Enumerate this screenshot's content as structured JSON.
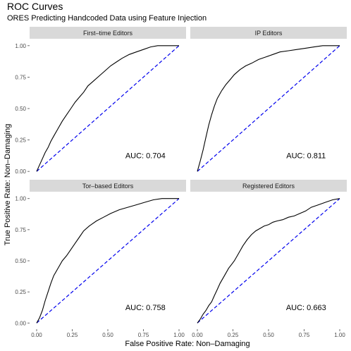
{
  "title": "ROC Curves",
  "subtitle": "ORES Predicting Handcoded Data using Feature Injection",
  "xlabel": "False Positive Rate: Non–Damaging",
  "ylabel": "True Positive Rate: Non–Damaging",
  "colors": {
    "strip": "#d9d9d9",
    "curve": "#000000",
    "diagonal": "#0000ee",
    "text": "#1a1a1a",
    "tick": "#4d4d4d"
  },
  "chart_data": {
    "type": "line",
    "xlim": [
      0,
      1
    ],
    "ylim": [
      0,
      1
    ],
    "x_ticks": [
      "0.00",
      "0.25",
      "0.50",
      "0.75",
      "1.00"
    ],
    "y_ticks": [
      "0.00",
      "0.25",
      "0.50",
      "0.75",
      "1.00"
    ],
    "grid": false,
    "reference_line": "diagonal, dashed blue",
    "panels": [
      {
        "strip": "First–time Editors",
        "auc_label": "AUC: 0.704",
        "x": [
          0,
          0.02,
          0.04,
          0.06,
          0.08,
          0.1,
          0.12,
          0.15,
          0.18,
          0.21,
          0.24,
          0.27,
          0.3,
          0.33,
          0.36,
          0.4,
          0.44,
          0.48,
          0.52,
          0.56,
          0.6,
          0.65,
          0.7,
          0.75,
          0.8,
          0.85,
          0.9,
          1.0
        ],
        "y": [
          0,
          0.05,
          0.1,
          0.15,
          0.19,
          0.24,
          0.28,
          0.34,
          0.4,
          0.45,
          0.5,
          0.55,
          0.59,
          0.63,
          0.68,
          0.72,
          0.76,
          0.8,
          0.84,
          0.87,
          0.9,
          0.93,
          0.95,
          0.97,
          0.99,
          1.0,
          1.0,
          1.0
        ]
      },
      {
        "strip": "IP Editors",
        "auc_label": "AUC: 0.811",
        "x": [
          0,
          0.02,
          0.04,
          0.06,
          0.08,
          0.1,
          0.12,
          0.14,
          0.17,
          0.2,
          0.23,
          0.26,
          0.3,
          0.34,
          0.38,
          0.43,
          0.48,
          0.53,
          0.58,
          0.64,
          0.7,
          0.76,
          0.82,
          0.88,
          0.94,
          1.0
        ],
        "y": [
          0,
          0.08,
          0.17,
          0.27,
          0.37,
          0.45,
          0.52,
          0.58,
          0.64,
          0.69,
          0.73,
          0.77,
          0.81,
          0.84,
          0.86,
          0.89,
          0.91,
          0.93,
          0.95,
          0.96,
          0.97,
          0.98,
          0.99,
          1.0,
          1.0,
          1.0
        ]
      },
      {
        "strip": "Tor–based Editors",
        "auc_label": "AUC: 0.758",
        "x": [
          0,
          0.02,
          0.04,
          0.06,
          0.08,
          0.1,
          0.12,
          0.15,
          0.18,
          0.21,
          0.24,
          0.27,
          0.3,
          0.33,
          0.37,
          0.42,
          0.47,
          0.52,
          0.58,
          0.64,
          0.7,
          0.76,
          0.82,
          0.88,
          0.94,
          1.0
        ],
        "y": [
          0,
          0.04,
          0.1,
          0.18,
          0.25,
          0.32,
          0.38,
          0.44,
          0.5,
          0.54,
          0.59,
          0.64,
          0.69,
          0.74,
          0.78,
          0.82,
          0.85,
          0.88,
          0.91,
          0.93,
          0.95,
          0.97,
          0.99,
          1.0,
          1.0,
          1.0
        ]
      },
      {
        "strip": "Registered Editors",
        "auc_label": "AUC: 0.663",
        "x": [
          0,
          0.02,
          0.04,
          0.06,
          0.08,
          0.1,
          0.12,
          0.14,
          0.16,
          0.18,
          0.2,
          0.22,
          0.24,
          0.26,
          0.28,
          0.3,
          0.32,
          0.35,
          0.38,
          0.41,
          0.44,
          0.47,
          0.5,
          0.53,
          0.56,
          0.6,
          0.64,
          0.68,
          0.72,
          0.76,
          0.8,
          0.85,
          0.9,
          0.95,
          1.0
        ],
        "y": [
          0,
          0.03,
          0.07,
          0.1,
          0.14,
          0.17,
          0.22,
          0.27,
          0.32,
          0.36,
          0.4,
          0.44,
          0.47,
          0.5,
          0.54,
          0.58,
          0.62,
          0.67,
          0.71,
          0.74,
          0.76,
          0.78,
          0.79,
          0.81,
          0.82,
          0.83,
          0.85,
          0.86,
          0.88,
          0.9,
          0.93,
          0.95,
          0.97,
          0.99,
          1.0
        ]
      }
    ]
  }
}
